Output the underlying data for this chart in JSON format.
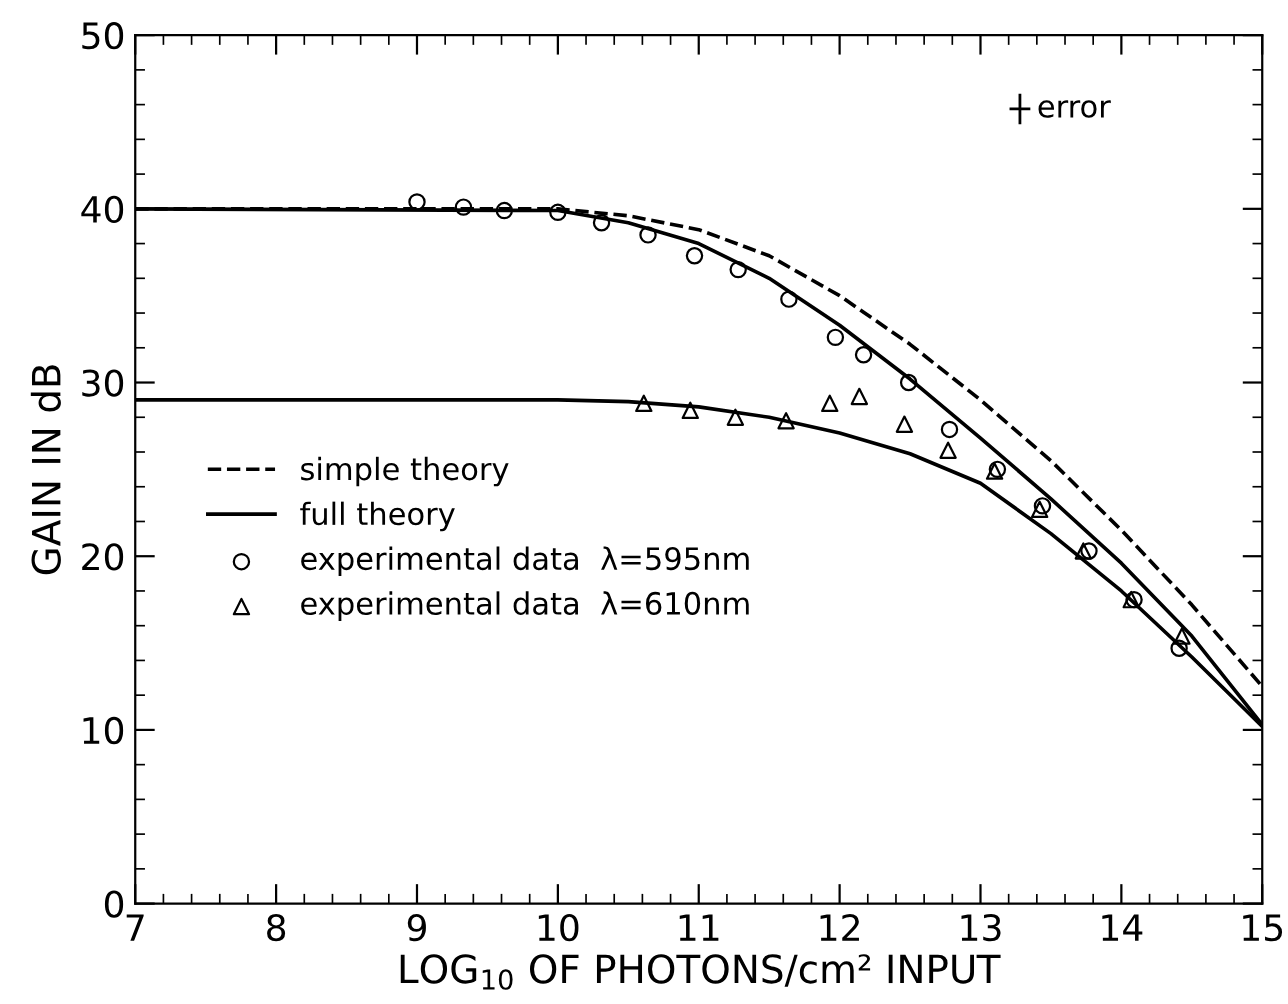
{
  "chart_data": {
    "type": "line",
    "xlabel": "LOG$_{10}$ OF PHOTONS/cm² INPUT",
    "ylabel": "GAIN IN dB",
    "xlim": [
      7,
      15
    ],
    "xticks": [
      7,
      8,
      9,
      10,
      11,
      12,
      13,
      14,
      15
    ],
    "ylim": [
      0,
      50
    ],
    "yticks": [
      0,
      10,
      20,
      30,
      40,
      50
    ],
    "legend": "left",
    "grid": false,
    "annotations": [
      "error"
    ],
    "series": [
      {
        "name": "simple theory",
        "line_style": "dashed",
        "color": "#000000",
        "x": [
          7,
          10,
          10.5,
          11,
          11.5,
          12,
          12.5,
          13,
          13.5,
          14,
          14.5,
          15
        ],
        "values": [
          40,
          40,
          39.6,
          38.8,
          37.3,
          35,
          32.2,
          29,
          25.5,
          21.5,
          17.2,
          12.5
        ]
      },
      {
        "name": "full theory",
        "line_style": "solid",
        "color": "#000000",
        "x": [
          7,
          10,
          10.5,
          11,
          11.5,
          12,
          12.5,
          13,
          13.5,
          14,
          14.5,
          15
        ],
        "values": [
          40,
          39.9,
          39.2,
          38,
          36,
          33.3,
          30.2,
          26.8,
          23.3,
          19.6,
          15.4,
          10.3
        ]
      },
      {
        "line_style": "solid",
        "color": "#000000",
        "x": [
          7,
          10,
          10.5,
          11,
          11.5,
          12,
          12.5,
          13,
          13.5,
          14,
          14.5,
          15
        ],
        "values": [
          29,
          29,
          28.9,
          28.6,
          28,
          27.1,
          25.9,
          24.2,
          21.3,
          18,
          14.2,
          10.2
        ]
      },
      {
        "name": "experimental data  λ=595nm",
        "type": "scatter",
        "marker": "circle",
        "color": "#000000",
        "x": [
          9.0,
          9.33,
          9.62,
          10.0,
          10.31,
          10.64,
          10.97,
          11.28,
          11.64,
          11.97,
          12.17,
          12.49,
          12.78,
          13.12,
          13.44,
          13.77,
          14.09,
          14.41
        ],
        "values": [
          40.4,
          40.1,
          39.9,
          39.8,
          39.2,
          38.5,
          37.3,
          36.5,
          34.8,
          32.6,
          31.6,
          30.0,
          27.3,
          25.0,
          22.9,
          20.3,
          17.5,
          14.7
        ]
      },
      {
        "name": "experimental data  λ=610nm",
        "type": "scatter",
        "marker": "triangle",
        "color": "#000000",
        "x": [
          10.61,
          10.94,
          11.26,
          11.62,
          11.93,
          12.14,
          12.46,
          12.77,
          13.1,
          13.42,
          13.73,
          14.07,
          14.43
        ],
        "values": [
          28.8,
          28.4,
          28.0,
          27.8,
          28.8,
          29.2,
          27.6,
          26.1,
          24.9,
          22.7,
          20.3,
          17.5,
          15.4
        ]
      }
    ]
  }
}
